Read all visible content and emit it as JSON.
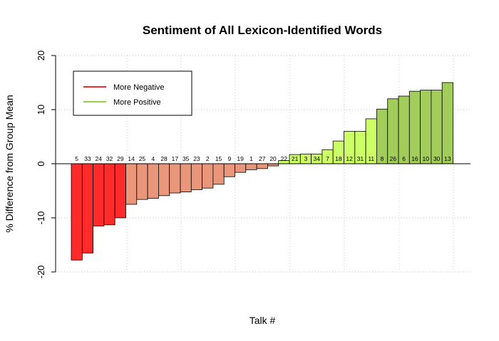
{
  "chart_data": {
    "type": "bar",
    "title": "Sentiment of All Lexicon-Identified Words",
    "xlabel": "Talk #",
    "ylabel": "% Difference from Group Mean",
    "ylim": [
      -20,
      20
    ],
    "y_ticks": [
      -20,
      -10,
      0,
      10,
      20
    ],
    "grid": true,
    "legend_position": "top-left",
    "legend": [
      {
        "label": "More Negative",
        "color": "#e83030"
      },
      {
        "label": "More Positive",
        "color": "#9acd50"
      }
    ],
    "categories": [
      "5",
      "33",
      "24",
      "32",
      "29",
      "14",
      "25",
      "4",
      "28",
      "17",
      "35",
      "23",
      "2",
      "15",
      "9",
      "19",
      "1",
      "27",
      "20",
      "22",
      "21",
      "3",
      "34",
      "7",
      "18",
      "12",
      "31",
      "11",
      "8",
      "26",
      "6",
      "16",
      "10",
      "30",
      "13"
    ],
    "values": [
      -17.8,
      -16.5,
      -11.5,
      -11.3,
      -10.0,
      -7.5,
      -6.6,
      -6.4,
      -5.9,
      -5.4,
      -5.2,
      -4.8,
      -4.5,
      -3.8,
      -2.4,
      -1.6,
      -1.1,
      -0.9,
      -0.4,
      0.6,
      1.7,
      1.8,
      1.8,
      2.6,
      4.2,
      6.0,
      6.0,
      8.3,
      10.1,
      12.0,
      12.5,
      13.4,
      13.6,
      13.6,
      15.0
    ],
    "colors": [
      "#ff2a2a",
      "#ff2a2a",
      "#ff2a2a",
      "#ff2a2a",
      "#ff2a2a",
      "#e9967a",
      "#e9967a",
      "#e9967a",
      "#e9967a",
      "#e9967a",
      "#e9967a",
      "#e9967a",
      "#e9967a",
      "#e9967a",
      "#e9967a",
      "#e9967a",
      "#e9967a",
      "#e9967a",
      "#e9967a",
      "#cdff66",
      "#cdff66",
      "#cdff66",
      "#cdff66",
      "#cdff66",
      "#cdff66",
      "#cdff66",
      "#cdff66",
      "#cdff66",
      "#a2cd5a",
      "#a2cd5a",
      "#a2cd5a",
      "#a2cd5a",
      "#a2cd5a",
      "#a2cd5a",
      "#a2cd5a"
    ]
  }
}
